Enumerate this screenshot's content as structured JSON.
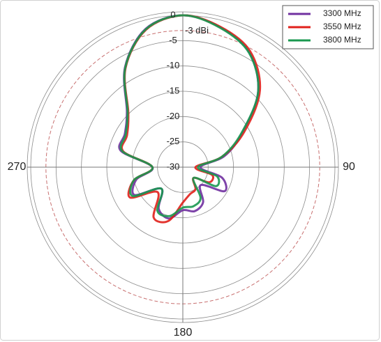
{
  "chart_data": {
    "type": "polar",
    "angles": [
      0,
      15,
      30,
      45,
      60,
      75,
      90,
      105,
      120,
      135,
      150,
      165,
      180,
      195,
      210,
      225,
      240,
      255,
      270,
      285,
      300,
      315,
      330,
      345
    ],
    "series": [
      {
        "name": "3300 MHz",
        "color": "#7030a0",
        "values": [
          0,
          -1.4,
          -3.8,
          -9,
          -16.5,
          -21.5,
          -26.5,
          -22,
          -20.5,
          -25,
          -22,
          -21,
          -21.5,
          -19.5,
          -20.5,
          -24,
          -19,
          -20.5,
          -24,
          -17.3,
          -16.8,
          -14.4,
          -7.2,
          -1.7
        ]
      },
      {
        "name": "3550 MHz",
        "color": "#e0201b",
        "values": [
          0,
          -1.3,
          -3.5,
          -8.5,
          -16,
          -22,
          -27.5,
          -24,
          -24,
          -27,
          -25,
          -24.5,
          -23,
          -19,
          -18.5,
          -23,
          -18,
          -20,
          -24,
          -17.8,
          -17.3,
          -14.8,
          -7.4,
          -1.9
        ]
      },
      {
        "name": "3800 MHz",
        "color": "#1a9850",
        "values": [
          0,
          -1.5,
          -3.9,
          -9,
          -16.7,
          -22,
          -27,
          -23,
          -22.5,
          -27,
          -23,
          -22,
          -22,
          -20,
          -20,
          -24,
          -18.6,
          -20,
          -24,
          -17.6,
          -17,
          -14.6,
          -7.3,
          -1.8
        ]
      }
    ],
    "rlim": [
      -30,
      0
    ],
    "rticks": [
      0,
      -5,
      -10,
      -15,
      -20,
      -25,
      -30
    ],
    "angle_ticks": [
      90,
      180,
      270
    ],
    "reference_ring": {
      "value": -3,
      "label": "-3 dBi"
    },
    "legend": "upper right"
  }
}
